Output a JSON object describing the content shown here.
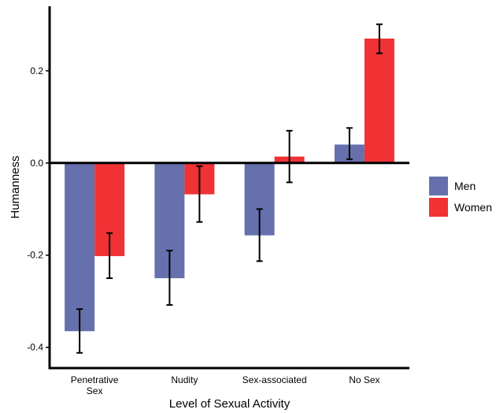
{
  "chart_data": {
    "type": "bar",
    "title": "",
    "xlabel": "Level of Sexual Activity",
    "ylabel": "Humanness",
    "categories": [
      "Penetrative\nSex",
      "Nudity",
      "Sex-associated",
      "No Sex"
    ],
    "series": [
      {
        "name": "Men",
        "color": "#6670ac",
        "values": [
          -0.365,
          -0.25,
          -0.157,
          0.04
        ],
        "error_low": [
          -0.412,
          -0.308,
          -0.213,
          0.008
        ],
        "error_high": [
          -0.317,
          -0.19,
          -0.1,
          0.076
        ]
      },
      {
        "name": "Women",
        "color": "#f03235",
        "values": [
          -0.202,
          -0.068,
          0.014,
          0.27
        ],
        "error_low": [
          -0.25,
          -0.128,
          -0.042,
          0.238
        ],
        "error_high": [
          -0.152,
          -0.007,
          0.07,
          0.301
        ]
      }
    ],
    "yticks": [
      -0.4,
      -0.2,
      0.0,
      0.2
    ],
    "ytick_labels": [
      "-0.4",
      "-0.2",
      "0.0",
      "0.2"
    ],
    "ylim": [
      -0.445,
      0.34
    ],
    "grid": false,
    "legend": "right"
  }
}
